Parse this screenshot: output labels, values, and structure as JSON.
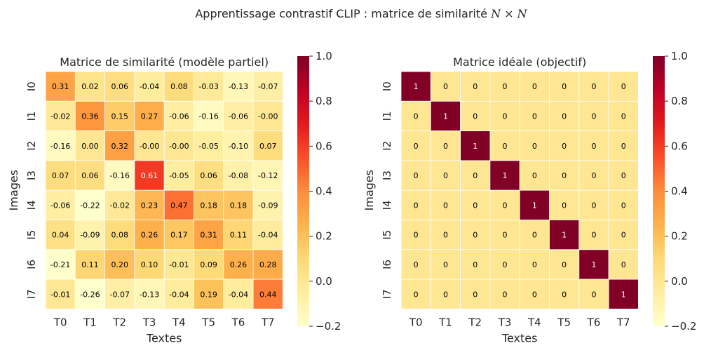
{
  "suptitle": {
    "prefix": "Apprentissage contrastif CLIP : matrice de similarité ",
    "math": "N × N"
  },
  "colors": {
    "low": "#ffffcc",
    "mid": "#feb24c",
    "high": "#800026",
    "text_dark": "#262626",
    "cell_text_dark": "#000000",
    "cell_text_light": "#ffffff"
  },
  "chart_data": [
    {
      "type": "heatmap",
      "title": "Matrice de similarité (modèle partiel)",
      "xlabel": "Textes",
      "ylabel": "Images",
      "x_categories": [
        "T0",
        "T1",
        "T2",
        "T3",
        "T4",
        "T5",
        "T6",
        "T7"
      ],
      "y_categories": [
        "I0",
        "I1",
        "I2",
        "I3",
        "I4",
        "I5",
        "I6",
        "I7"
      ],
      "colorbar": {
        "vmin": -0.2,
        "vmax": 1.0,
        "ticks": [
          "−0.2",
          "0.0",
          "0.2",
          "0.4",
          "0.6",
          "0.8",
          "1.0"
        ]
      },
      "values": [
        [
          0.31,
          0.02,
          0.06,
          -0.04,
          0.08,
          -0.03,
          -0.13,
          -0.07
        ],
        [
          -0.02,
          0.36,
          0.15,
          0.27,
          -0.06,
          -0.16,
          -0.06,
          -0.0
        ],
        [
          -0.16,
          0.0,
          0.32,
          -0.0,
          -0.0,
          -0.05,
          -0.1,
          0.07
        ],
        [
          0.07,
          0.06,
          -0.16,
          0.61,
          -0.05,
          0.06,
          -0.08,
          -0.12
        ],
        [
          -0.06,
          -0.22,
          -0.02,
          0.23,
          0.47,
          0.18,
          0.18,
          -0.09
        ],
        [
          0.04,
          -0.09,
          0.08,
          0.26,
          0.17,
          0.31,
          0.11,
          -0.04
        ],
        [
          -0.21,
          0.11,
          0.2,
          0.1,
          -0.01,
          0.09,
          0.26,
          0.28
        ],
        [
          -0.01,
          -0.26,
          -0.07,
          -0.13,
          -0.04,
          0.19,
          -0.04,
          0.44
        ]
      ],
      "labels": [
        [
          "0.31",
          "0.02",
          "0.06",
          "-0.04",
          "0.08",
          "-0.03",
          "-0.13",
          "-0.07"
        ],
        [
          "-0.02",
          "0.36",
          "0.15",
          "0.27",
          "-0.06",
          "-0.16",
          "-0.06",
          "-0.00"
        ],
        [
          "-0.16",
          "0.00",
          "0.32",
          "-0.00",
          "-0.00",
          "-0.05",
          "-0.10",
          "0.07"
        ],
        [
          "0.07",
          "0.06",
          "-0.16",
          "0.61",
          "-0.05",
          "0.06",
          "-0.08",
          "-0.12"
        ],
        [
          "-0.06",
          "-0.22",
          "-0.02",
          "0.23",
          "0.47",
          "0.18",
          "0.18",
          "-0.09"
        ],
        [
          "0.04",
          "-0.09",
          "0.08",
          "0.26",
          "0.17",
          "0.31",
          "0.11",
          "-0.04"
        ],
        [
          "-0.21",
          "0.11",
          "0.20",
          "0.10",
          "-0.01",
          "0.09",
          "0.26",
          "0.28"
        ],
        [
          "-0.01",
          "-0.26",
          "-0.07",
          "-0.13",
          "-0.04",
          "0.19",
          "-0.04",
          "0.44"
        ]
      ]
    },
    {
      "type": "heatmap",
      "title": "Matrice idéale (objectif)",
      "xlabel": "Textes",
      "ylabel": "Images",
      "x_categories": [
        "T0",
        "T1",
        "T2",
        "T3",
        "T4",
        "T5",
        "T6",
        "T7"
      ],
      "y_categories": [
        "I0",
        "I1",
        "I2",
        "I3",
        "I4",
        "I5",
        "I6",
        "I7"
      ],
      "colorbar": {
        "vmin": -0.2,
        "vmax": 1.0,
        "ticks": [
          "−0.2",
          "0.0",
          "0.2",
          "0.4",
          "0.6",
          "0.8",
          "1.0"
        ]
      },
      "values": [
        [
          1,
          0,
          0,
          0,
          0,
          0,
          0,
          0
        ],
        [
          0,
          1,
          0,
          0,
          0,
          0,
          0,
          0
        ],
        [
          0,
          0,
          1,
          0,
          0,
          0,
          0,
          0
        ],
        [
          0,
          0,
          0,
          1,
          0,
          0,
          0,
          0
        ],
        [
          0,
          0,
          0,
          0,
          1,
          0,
          0,
          0
        ],
        [
          0,
          0,
          0,
          0,
          0,
          1,
          0,
          0
        ],
        [
          0,
          0,
          0,
          0,
          0,
          0,
          1,
          0
        ],
        [
          0,
          0,
          0,
          0,
          0,
          0,
          0,
          1
        ]
      ],
      "labels": [
        [
          "1",
          "0",
          "0",
          "0",
          "0",
          "0",
          "0",
          "0"
        ],
        [
          "0",
          "1",
          "0",
          "0",
          "0",
          "0",
          "0",
          "0"
        ],
        [
          "0",
          "0",
          "1",
          "0",
          "0",
          "0",
          "0",
          "0"
        ],
        [
          "0",
          "0",
          "0",
          "1",
          "0",
          "0",
          "0",
          "0"
        ],
        [
          "0",
          "0",
          "0",
          "0",
          "1",
          "0",
          "0",
          "0"
        ],
        [
          "0",
          "0",
          "0",
          "0",
          "0",
          "1",
          "0",
          "0"
        ],
        [
          "0",
          "0",
          "0",
          "0",
          "0",
          "0",
          "1",
          "0"
        ],
        [
          "0",
          "0",
          "0",
          "0",
          "0",
          "0",
          "0",
          "1"
        ]
      ]
    }
  ]
}
